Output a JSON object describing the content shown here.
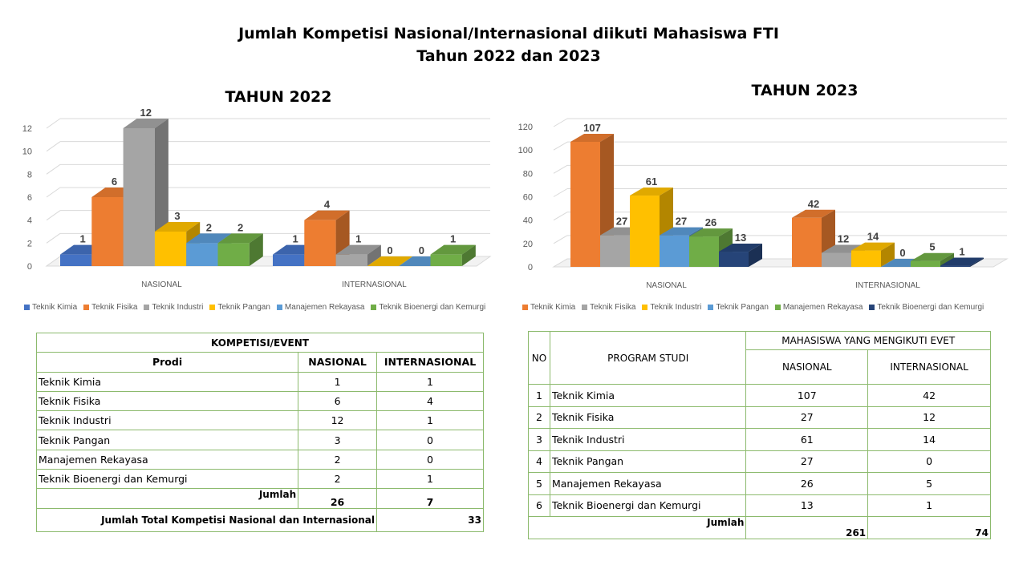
{
  "title_line1": "Jumlah Kompetisi Nasional/Internasional diikuti Mahasiswa FTI",
  "title_line2": "Tahun 2022 dan 2023",
  "chart_data": [
    {
      "type": "bar",
      "title": "TAHUN 2022",
      "categories": [
        "NASIONAL",
        "INTERNASIONAL"
      ],
      "ylim": [
        0,
        12
      ],
      "yticks": [
        0,
        2,
        4,
        6,
        8,
        10,
        12
      ],
      "grid": true,
      "legend_position": "bottom",
      "series": [
        {
          "name": "Teknik Kimia",
          "color": "#4472c4",
          "values": [
            1,
            1
          ]
        },
        {
          "name": "Teknik Fisika",
          "color": "#ed7d31",
          "values": [
            6,
            4
          ]
        },
        {
          "name": "Teknik Industri",
          "color": "#a5a5a5",
          "values": [
            12,
            1
          ]
        },
        {
          "name": "Teknik Pangan",
          "color": "#ffc000",
          "values": [
            3,
            0
          ]
        },
        {
          "name": "Manajemen Rekayasa",
          "color": "#5b9bd5",
          "values": [
            2,
            0
          ]
        },
        {
          "name": "Teknik Bioenergi dan Kemurgi",
          "color": "#70ad47",
          "values": [
            2,
            1
          ]
        }
      ]
    },
    {
      "type": "bar",
      "title": "TAHUN 2023",
      "categories": [
        "NASIONAL",
        "INTERNASIONAL"
      ],
      "ylim": [
        0,
        120
      ],
      "yticks": [
        0,
        20,
        40,
        60,
        80,
        100,
        120
      ],
      "grid": true,
      "legend_position": "bottom",
      "series": [
        {
          "name": "Teknik Kimia",
          "color": "#ed7d31",
          "values": [
            107,
            42
          ]
        },
        {
          "name": "Teknik Fisika",
          "color": "#a5a5a5",
          "values": [
            27,
            12
          ]
        },
        {
          "name": "Teknik Industri",
          "color": "#ffc000",
          "values": [
            61,
            14
          ]
        },
        {
          "name": "Teknik Pangan",
          "color": "#5b9bd5",
          "values": [
            27,
            0
          ]
        },
        {
          "name": "Manajemen Rekayasa",
          "color": "#70ad47",
          "values": [
            26,
            5
          ]
        },
        {
          "name": "Teknik Bioenergi dan Kemurgi",
          "color": "#264478",
          "values": [
            13,
            1
          ]
        }
      ]
    }
  ],
  "table_2022": {
    "header_group": "KOMPETISI/EVENT",
    "col_prodi": "Prodi",
    "col_nasional": "NASIONAL",
    "col_internasional": "INTERNASIONAL",
    "rows": [
      {
        "prodi": "Teknik Kimia",
        "nasional": "1",
        "internasional": "1"
      },
      {
        "prodi": "Teknik Fisika",
        "nasional": "6",
        "internasional": "4"
      },
      {
        "prodi": "Teknik Industri",
        "nasional": "12",
        "internasional": "1"
      },
      {
        "prodi": "Teknik Pangan",
        "nasional": "3",
        "internasional": "0"
      },
      {
        "prodi": "Manajemen Rekayasa",
        "nasional": "2",
        "internasional": "0"
      },
      {
        "prodi": "Teknik Bioenergi dan Kemurgi",
        "nasional": "2",
        "internasional": "1"
      }
    ],
    "jumlah_label": "Jumlah",
    "jumlah_nasional": "26",
    "jumlah_internasional": "7",
    "total_label": "Jumlah Total Kompetisi Nasional dan Internasional",
    "total_value": "33"
  },
  "table_2023": {
    "col_no": "NO",
    "col_program": "PROGRAM STUDI",
    "header_group": "MAHASISWA YANG MENGIKUTI EVET",
    "col_nasional": "NASIONAL",
    "col_internasional": "INTERNASIONAL",
    "rows": [
      {
        "no": "1",
        "prodi": "Teknik Kimia",
        "nasional": "107",
        "internasional": "42"
      },
      {
        "no": "2",
        "prodi": "Teknik Fisika",
        "nasional": "27",
        "internasional": "12"
      },
      {
        "no": "3",
        "prodi": "Teknik Industri",
        "nasional": "61",
        "internasional": "14"
      },
      {
        "no": "4",
        "prodi": "Teknik Pangan",
        "nasional": "27",
        "internasional": "0"
      },
      {
        "no": "5",
        "prodi": "Manajemen Rekayasa",
        "nasional": "26",
        "internasional": "5"
      },
      {
        "no": "6",
        "prodi": "Teknik Bioenergi dan Kemurgi",
        "nasional": "13",
        "internasional": "1"
      }
    ],
    "jumlah_label": "Jumlah",
    "jumlah_nasional": "261",
    "jumlah_internasional": "74"
  }
}
